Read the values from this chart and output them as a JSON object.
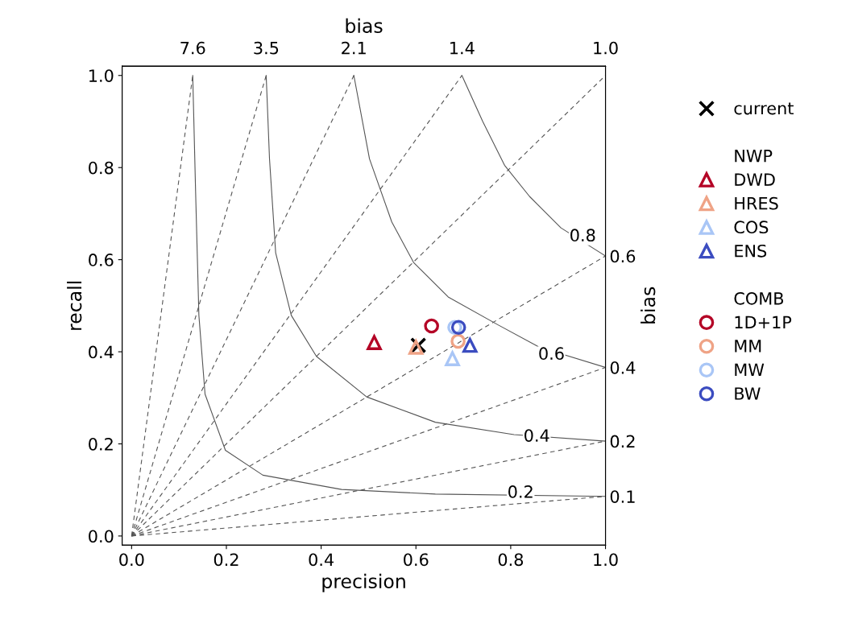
{
  "chart_data": {
    "type": "scatter",
    "xlabel": "precision",
    "ylabel": "recall",
    "x2label": "bias",
    "y2label": "bias",
    "xlim": [
      -0.02,
      1.0
    ],
    "ylim": [
      -0.02,
      1.02
    ],
    "xticks": [
      {
        "value": 0,
        "label": "0.0"
      },
      0.2,
      0.4,
      0.6,
      0.8,
      {
        "value": 1,
        "label": "1.0"
      }
    ],
    "yticks": [
      {
        "value": 0,
        "label": "0.0"
      },
      0.2,
      0.4,
      0.6,
      0.8,
      {
        "value": 1,
        "label": "1.0"
      }
    ],
    "y2lim": [
      -0.02,
      1.02
    ],
    "y2ticks": [
      {
        "value": 0.608,
        "label": "0.6"
      },
      {
        "value": 0.366,
        "label": "0.4"
      },
      {
        "value": 0.206,
        "label": "0.2"
      },
      {
        "value": 0.086,
        "label": "0.1"
      }
    ],
    "grid": false,
    "legend": "right",
    "series": [
      {
        "type": "line",
        "line_style": "dashed",
        "color": "#555555",
        "x": [
          0,
          0.129
        ],
        "values": [
          0,
          1.0
        ]
      },
      {
        "type": "line",
        "line_style": "dashed",
        "color": "#555555",
        "x": [
          0,
          0.284
        ],
        "values": [
          0,
          1.0
        ]
      },
      {
        "type": "line",
        "line_style": "dashed",
        "color": "#555555",
        "x": [
          0,
          0.469
        ],
        "values": [
          0,
          1.0
        ]
      },
      {
        "type": "line",
        "line_style": "dashed",
        "color": "#555555",
        "x": [
          0,
          0.697
        ],
        "values": [
          0,
          1.0
        ]
      },
      {
        "type": "line",
        "line_style": "dashed",
        "color": "#555555",
        "x": [
          0,
          1.0
        ],
        "values": [
          0,
          1.0
        ]
      },
      {
        "type": "line",
        "line_style": "dashed",
        "color": "#555555",
        "x": [
          0,
          1.0
        ],
        "values": [
          0,
          0.608
        ]
      },
      {
        "type": "line",
        "line_style": "dashed",
        "color": "#555555",
        "x": [
          0,
          1.0
        ],
        "values": [
          0,
          0.366
        ]
      },
      {
        "type": "line",
        "line_style": "dashed",
        "color": "#555555",
        "x": [
          0,
          1.0
        ],
        "values": [
          0,
          0.206
        ]
      },
      {
        "type": "line",
        "line_style": "dashed",
        "color": "#555555",
        "x": [
          0,
          1.0
        ],
        "values": [
          0,
          0.086
        ]
      },
      {
        "type": "line",
        "line_style": "solid",
        "color": "#555555",
        "x": [
          0.129,
          0.135,
          0.142,
          0.155,
          0.198,
          0.277,
          0.443,
          0.641,
          1.0
        ],
        "values": [
          1.0,
          0.75,
          0.479,
          0.308,
          0.186,
          0.132,
          0.101,
          0.091,
          0.086
        ]
      },
      {
        "type": "line",
        "line_style": "solid",
        "color": "#555555",
        "x": [
          0.284,
          0.291,
          0.304,
          0.337,
          0.39,
          0.496,
          0.641,
          0.807,
          1.0
        ],
        "values": [
          1.0,
          0.819,
          0.615,
          0.479,
          0.39,
          0.302,
          0.247,
          0.22,
          0.206
        ]
      },
      {
        "type": "line",
        "line_style": "solid",
        "color": "#555555",
        "x": [
          0.469,
          0.502,
          0.549,
          0.595,
          0.668,
          0.774,
          0.86,
          1.0
        ],
        "values": [
          1.0,
          0.819,
          0.682,
          0.594,
          0.519,
          0.458,
          0.41,
          0.366
        ]
      },
      {
        "type": "line",
        "line_style": "solid",
        "color": "#555555",
        "x": [
          0.697,
          0.741,
          0.787,
          0.84,
          0.906,
          1.0
        ],
        "values": [
          1.0,
          0.9,
          0.805,
          0.737,
          0.669,
          0.608
        ]
      },
      {
        "name": "current",
        "marker": "cross",
        "color": "#000000",
        "x": [
          0.605
        ],
        "values": [
          0.414
        ]
      },
      {
        "name": "DWD",
        "marker": "triangle",
        "color": "#b40426",
        "x": [
          0.512
        ],
        "values": [
          0.42
        ]
      },
      {
        "name": "HRES",
        "marker": "triangle",
        "color": "#efa386",
        "x": [
          0.6
        ],
        "values": [
          0.41
        ]
      },
      {
        "name": "COS",
        "marker": "triangle",
        "color": "#a9c6f6",
        "x": [
          0.677
        ],
        "values": [
          0.385
        ]
      },
      {
        "name": "ENS",
        "marker": "triangle",
        "color": "#3b4cc0",
        "x": [
          0.714
        ],
        "values": [
          0.414
        ]
      },
      {
        "name": "1D+1P",
        "marker": "circle",
        "color": "#b40426",
        "x": [
          0.633
        ],
        "values": [
          0.456
        ]
      },
      {
        "name": "MM",
        "marker": "circle",
        "color": "#efa386",
        "x": [
          0.689
        ],
        "values": [
          0.423
        ]
      },
      {
        "name": "MW",
        "marker": "circle",
        "color": "#a9c6f6",
        "x": [
          0.682
        ],
        "values": [
          0.453
        ]
      },
      {
        "name": "BW",
        "marker": "circle",
        "color": "#3b4cc0",
        "x": [
          0.69
        ],
        "values": [
          0.453
        ]
      }
    ],
    "annotations": [
      "NWP",
      "COMB",
      {
        "text": "0.8",
        "x": 0.952,
        "y": 0.65
      },
      {
        "text": "0.6",
        "x": 0.886,
        "y": 0.393
      },
      {
        "text": "0.4",
        "x": 0.855,
        "y": 0.215
      },
      {
        "text": "0.2",
        "x": 0.821,
        "y": 0.093
      },
      {
        "text": "7.6",
        "x": 0.129,
        "y": 1.0
      },
      {
        "text": "3.5",
        "x": 0.284,
        "y": 1.0
      },
      {
        "text": "2.1",
        "x": 0.469,
        "y": 1.0
      },
      {
        "text": "1.4",
        "x": 0.697,
        "y": 1.0
      },
      {
        "text": "1.0",
        "x": 1.0,
        "y": 1.0
      }
    ]
  }
}
